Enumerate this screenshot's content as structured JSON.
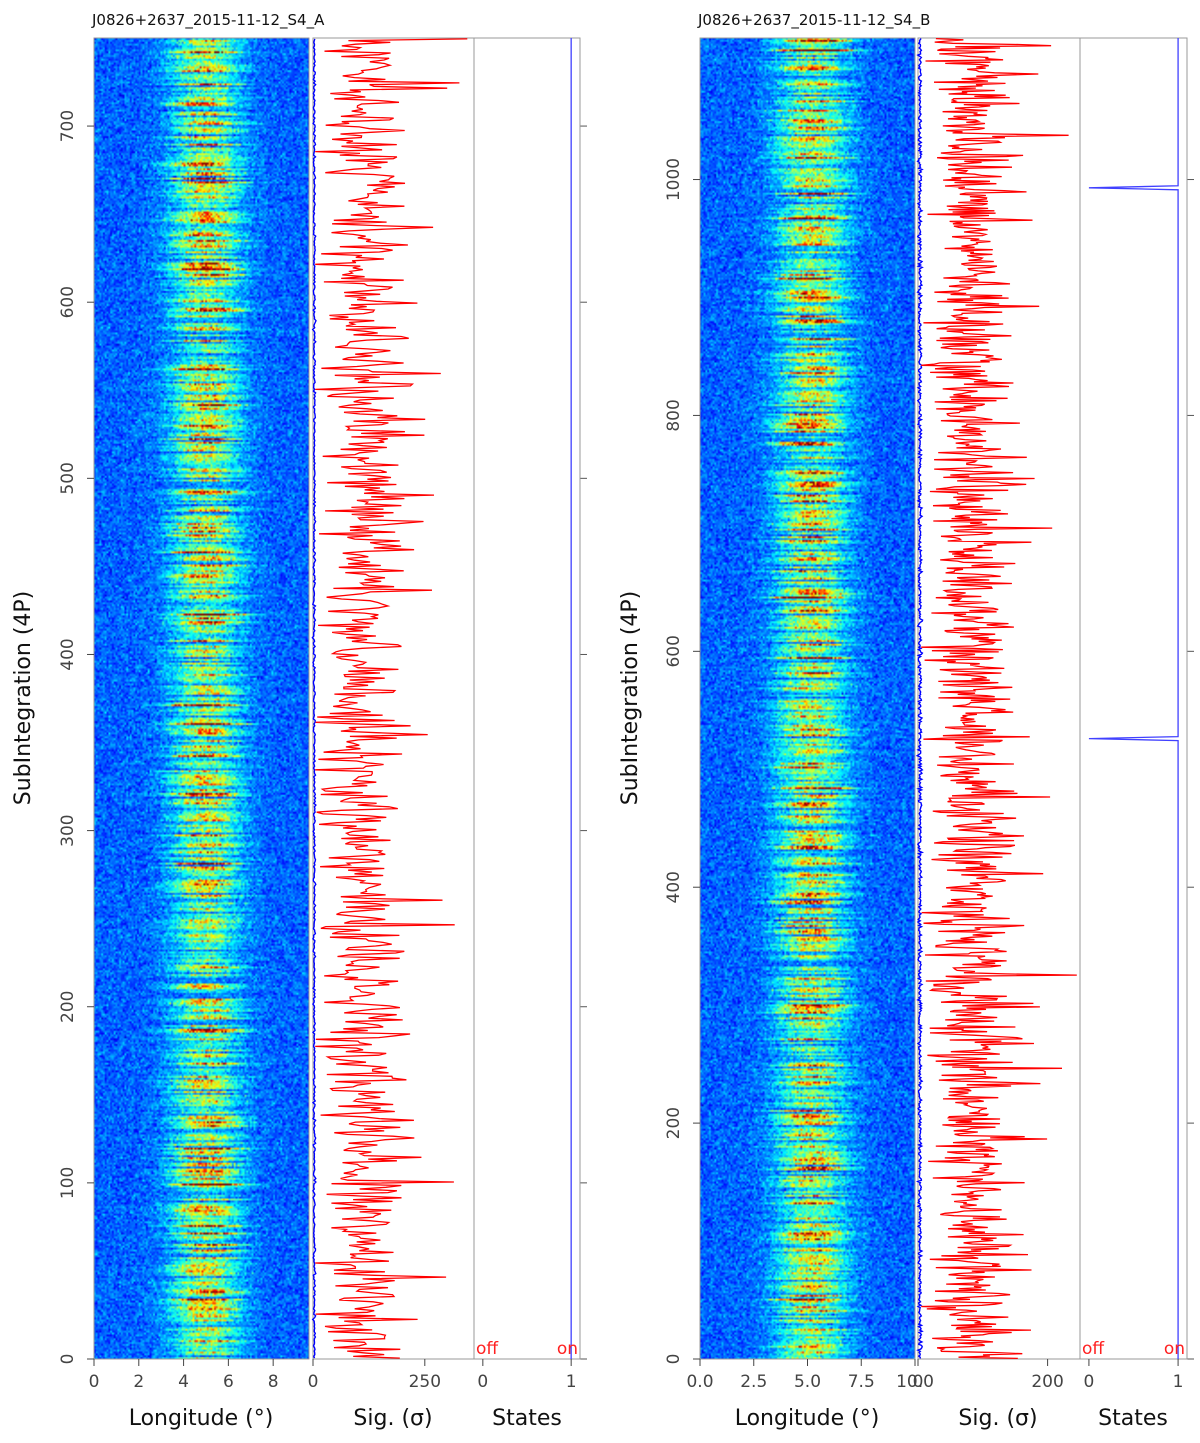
{
  "chart_data": [
    {
      "type": "heatmap",
      "title": "J0826+2637_2015-11-12_S4_A",
      "n_subints": 750,
      "ylabel": "SubIntegration (4P)",
      "ylim": [
        0,
        750
      ],
      "y_ticks": [
        0,
        100,
        200,
        300,
        400,
        500,
        600,
        700
      ],
      "heatmap": {
        "xlabel": "Longitude (°)",
        "xlim": [
          0,
          9.6
        ],
        "x_ticks": [
          0,
          2,
          4,
          6,
          8
        ],
        "x_tick_labels": [
          "0",
          "2",
          "4",
          "6",
          "8"
        ],
        "pulse_center": 5.0,
        "pulse_width": 1.9,
        "colormap": "jet"
      },
      "significance": {
        "xlabel": "Sig. (σ)",
        "xlim": [
          0,
          360
        ],
        "x_ticks": [
          0,
          250
        ],
        "x_tick_labels": [
          "0",
          "250"
        ],
        "mean": 110,
        "spread": 85,
        "max": 345,
        "noise_color": "#0000ff",
        "signal_color": "#ff0000"
      },
      "states": {
        "xlabel": "States",
        "xlim": [
          -0.1,
          1.1
        ],
        "x_ticks": [
          0,
          1
        ],
        "x_tick_labels": [
          "0",
          "1"
        ],
        "off_label": "off",
        "on_label": "on",
        "value": 1,
        "off_subints": [],
        "color": "#4040ff"
      }
    },
    {
      "type": "heatmap",
      "title": "J0826+2637_2015-11-12_S4_B",
      "n_subints": 1120,
      "ylabel": "SubIntegration (4P)",
      "ylim": [
        0,
        1120
      ],
      "y_ticks": [
        0,
        200,
        400,
        600,
        800,
        1000
      ],
      "heatmap": {
        "xlabel": "Longitude (°)",
        "xlim": [
          0,
          10
        ],
        "x_ticks": [
          0,
          2.5,
          5,
          7.5,
          10
        ],
        "x_tick_labels": [
          "0.0",
          "2.5",
          "5.0",
          "7.5",
          "10.0"
        ],
        "pulse_center": 5.2,
        "pulse_width": 2.0,
        "colormap": "jet"
      },
      "significance": {
        "xlabel": "Sig. (σ)",
        "xlim": [
          0,
          250
        ],
        "x_ticks": [
          0,
          200
        ],
        "x_tick_labels": [
          "0",
          "200"
        ],
        "mean": 80,
        "spread": 55,
        "max": 245,
        "noise_color": "#0000ff",
        "signal_color": "#ff0000"
      },
      "states": {
        "xlabel": "States",
        "xlim": [
          -0.1,
          1.1
        ],
        "x_ticks": [
          0,
          1
        ],
        "x_tick_labels": [
          "0",
          "1"
        ],
        "off_label": "off",
        "on_label": "on",
        "value": 1,
        "off_subints": [
          526,
          993
        ],
        "color": "#4040ff"
      }
    }
  ]
}
